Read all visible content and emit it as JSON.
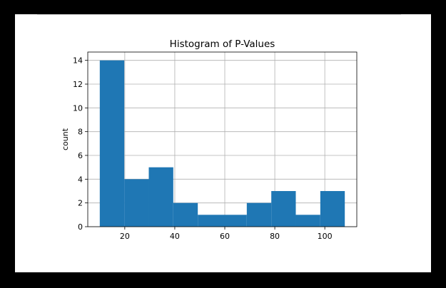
{
  "chart_data": {
    "type": "bar",
    "title": "Histogram of P-Values",
    "xlabel": "",
    "ylabel": "count",
    "xlim": [
      5.2,
      112.8
    ],
    "ylim": [
      0,
      14.7
    ],
    "grid": true,
    "bar_color": "#1f77b4",
    "grid_color": "#b0b0b0",
    "bins": [
      {
        "x0": 10.0,
        "x1": 19.8,
        "count": 14
      },
      {
        "x0": 19.8,
        "x1": 29.6,
        "count": 4
      },
      {
        "x0": 29.6,
        "x1": 39.4,
        "count": 5
      },
      {
        "x0": 39.4,
        "x1": 49.2,
        "count": 2
      },
      {
        "x0": 49.2,
        "x1": 59.0,
        "count": 1
      },
      {
        "x0": 59.0,
        "x1": 68.8,
        "count": 1
      },
      {
        "x0": 68.8,
        "x1": 78.6,
        "count": 2
      },
      {
        "x0": 78.6,
        "x1": 88.4,
        "count": 3
      },
      {
        "x0": 88.4,
        "x1": 98.2,
        "count": 1
      },
      {
        "x0": 98.2,
        "x1": 108.0,
        "count": 3
      }
    ],
    "x_ticks": [
      20,
      40,
      60,
      80,
      100
    ],
    "y_ticks": [
      0,
      2,
      4,
      6,
      8,
      10,
      12,
      14
    ]
  }
}
